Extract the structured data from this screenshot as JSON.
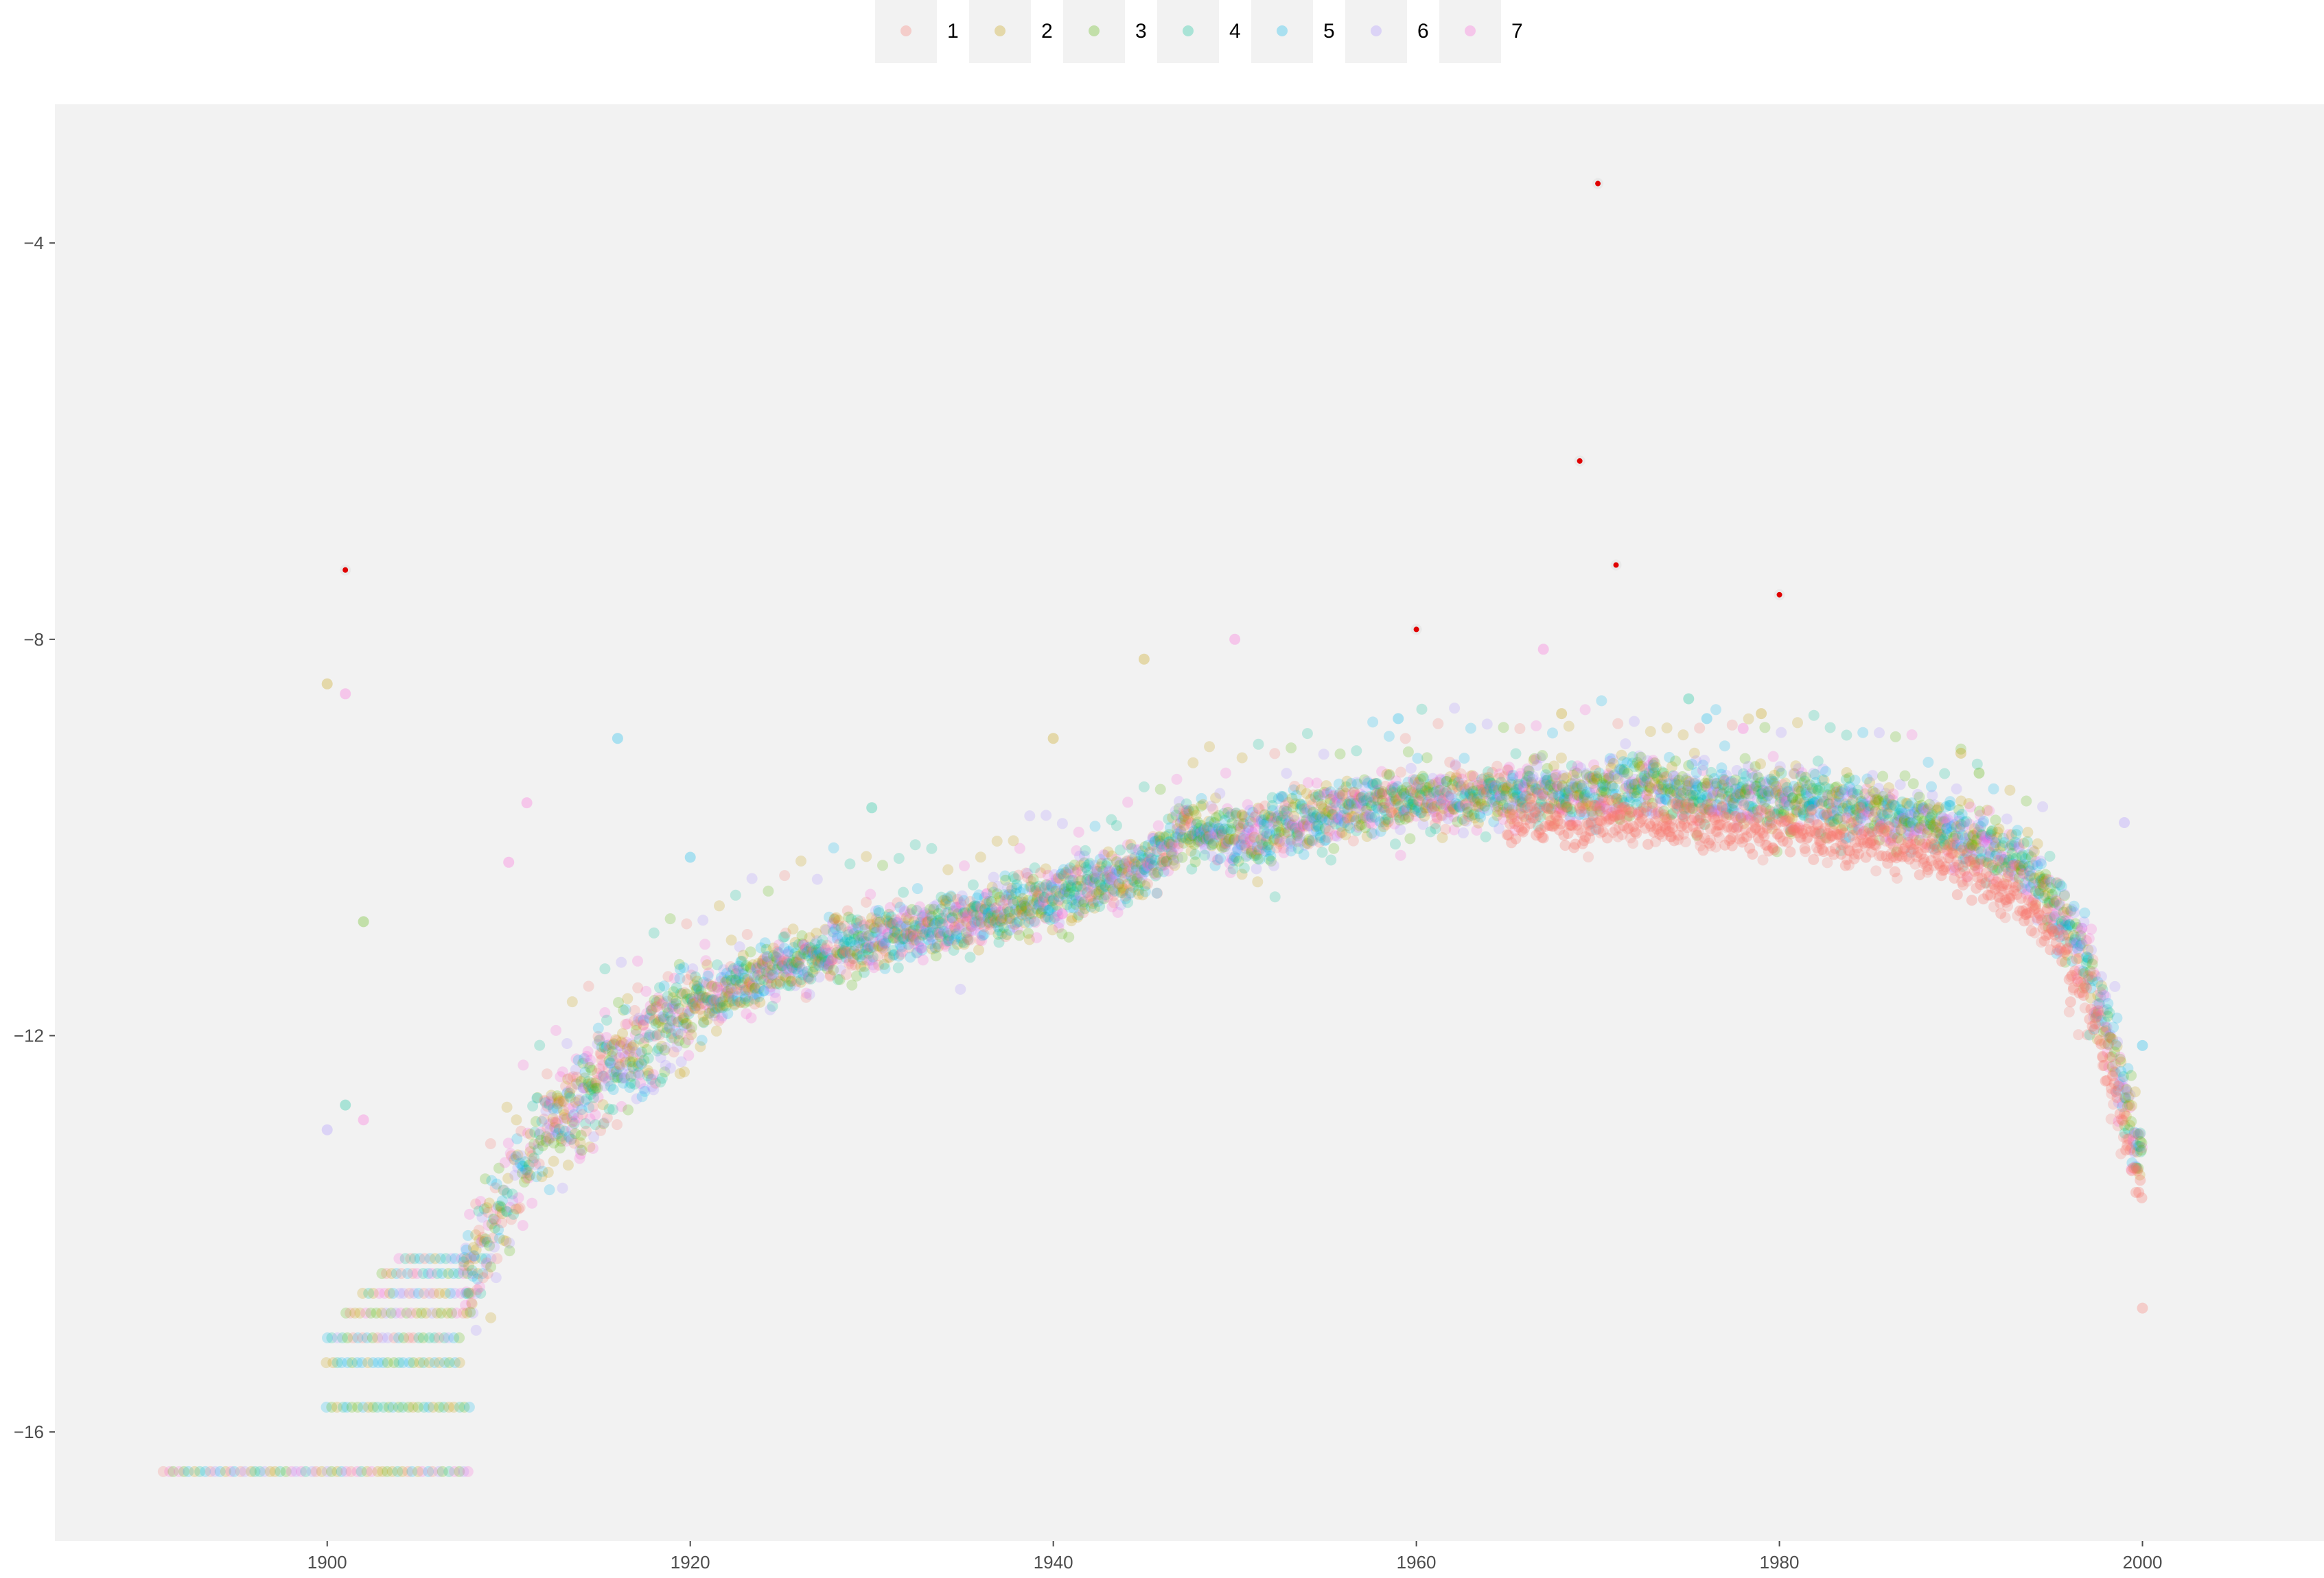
{
  "chart_data": {
    "type": "scatter",
    "title": "",
    "xlabel": "",
    "ylabel": "",
    "xlim": [
      1885,
      2010
    ],
    "ylim": [
      -17.1,
      -2.6
    ],
    "x_ticks": [
      1900,
      1920,
      1940,
      1960,
      1980,
      2000
    ],
    "y_ticks": [
      -4,
      -8,
      -12,
      -16
    ],
    "grid": false,
    "panel_background": "#f2f2f2",
    "legend_position": "top",
    "point_alpha": 0.22,
    "series": [
      {
        "name": "1",
        "color": "#f8766d"
      },
      {
        "name": "2",
        "color": "#c49a00"
      },
      {
        "name": "3",
        "color": "#53b400"
      },
      {
        "name": "4",
        "color": "#00c094"
      },
      {
        "name": "5",
        "color": "#00b6eb"
      },
      {
        "name": "6",
        "color": "#a58aff"
      },
      {
        "name": "7",
        "color": "#fb61d7"
      }
    ],
    "trend": {
      "x": [
        1908,
        1910,
        1912,
        1915,
        1918,
        1920,
        1925,
        1930,
        1935,
        1940,
        1945,
        1946.5,
        1947,
        1950,
        1955,
        1960,
        1965,
        1970,
        1972,
        1975,
        1980,
        1985,
        1990,
        1993,
        1995,
        1997,
        1998,
        1999,
        2000
      ],
      "y": [
        -14.2,
        -13.6,
        -13.0,
        -12.4,
        -12.0,
        -11.7,
        -11.3,
        -11.05,
        -10.85,
        -10.6,
        -10.3,
        -10.1,
        -9.9,
        -10.0,
        -9.8,
        -9.6,
        -9.55,
        -9.5,
        -9.45,
        -9.55,
        -9.6,
        -9.7,
        -9.95,
        -10.2,
        -10.6,
        -11.3,
        -11.9,
        -12.6,
        -13.3
      ]
    },
    "lower_band_offset": {
      "series": "1",
      "x_from": 1965,
      "y_shift": -0.35
    },
    "steps": [
      {
        "y": -16.4,
        "x_from": 1891,
        "x_to": 1908,
        "series": [
          1,
          2,
          3,
          4,
          5,
          6,
          7
        ]
      },
      {
        "y": -15.75,
        "x_from": 1900,
        "x_to": 1908,
        "series": [
          2,
          3,
          4,
          5
        ]
      },
      {
        "y": -15.3,
        "x_from": 1900,
        "x_to": 1907.5,
        "series": [
          2,
          3,
          4,
          5
        ]
      },
      {
        "y": -15.05,
        "x_from": 1900,
        "x_to": 1907.5,
        "series": [
          1,
          3,
          4,
          5,
          6
        ]
      },
      {
        "y": -14.8,
        "x_from": 1901,
        "x_to": 1908,
        "series": [
          1,
          2,
          3,
          4,
          5,
          6,
          7
        ]
      },
      {
        "y": -14.6,
        "x_from": 1902,
        "x_to": 1908.5,
        "series": [
          1,
          2,
          3,
          4,
          5,
          6,
          7
        ]
      },
      {
        "y": -14.4,
        "x_from": 1903,
        "x_to": 1909,
        "series": [
          1,
          2,
          3,
          4,
          5,
          6,
          7
        ]
      },
      {
        "y": -14.25,
        "x_from": 1904,
        "x_to": 1909.5,
        "series": [
          1,
          2,
          3,
          4,
          5,
          6,
          7
        ]
      }
    ],
    "outliers_highlighted": [
      {
        "x": 1901,
        "y": -7.3
      },
      {
        "x": 1960,
        "y": -7.9
      },
      {
        "x": 1969,
        "y": -6.2
      },
      {
        "x": 1970,
        "y": -3.4
      },
      {
        "x": 1971,
        "y": -7.25
      },
      {
        "x": 1980,
        "y": -7.55
      }
    ],
    "outliers": [
      {
        "x": 1900,
        "y": -8.45,
        "series": 2
      },
      {
        "x": 1901,
        "y": -8.55,
        "series": 7
      },
      {
        "x": 1902,
        "y": -10.85,
        "series": 3
      },
      {
        "x": 1911,
        "y": -9.65,
        "series": 7
      },
      {
        "x": 1910,
        "y": -10.25,
        "series": 7
      },
      {
        "x": 1916,
        "y": -9.0,
        "series": 5
      },
      {
        "x": 1920,
        "y": -10.2,
        "series": 5
      },
      {
        "x": 1930,
        "y": -9.7,
        "series": 4
      },
      {
        "x": 1940,
        "y": -9.0,
        "series": 2
      },
      {
        "x": 1945,
        "y": -8.2,
        "series": 2
      },
      {
        "x": 1950,
        "y": -8.0,
        "series": 7
      },
      {
        "x": 1959,
        "y": -8.8,
        "series": 5
      },
      {
        "x": 1967,
        "y": -8.1,
        "series": 7
      },
      {
        "x": 1968,
        "y": -8.75,
        "series": 2
      },
      {
        "x": 1975,
        "y": -8.6,
        "series": 4
      },
      {
        "x": 1976,
        "y": -8.8,
        "series": 5
      },
      {
        "x": 1978,
        "y": -8.9,
        "series": 7
      },
      {
        "x": 1979,
        "y": -8.75,
        "series": 2
      },
      {
        "x": 1990,
        "y": -9.15,
        "series": 2
      },
      {
        "x": 1991,
        "y": -9.35,
        "series": 3
      },
      {
        "x": 1999,
        "y": -9.85,
        "series": 6
      },
      {
        "x": 2000,
        "y": -12.1,
        "series": 5
      },
      {
        "x": 2000,
        "y": -14.75,
        "series": 1
      },
      {
        "x": 1901,
        "y": -12.7,
        "series": 4
      },
      {
        "x": 1902,
        "y": -12.85,
        "series": 7
      },
      {
        "x": 1900,
        "y": -12.95,
        "series": 6
      }
    ]
  }
}
